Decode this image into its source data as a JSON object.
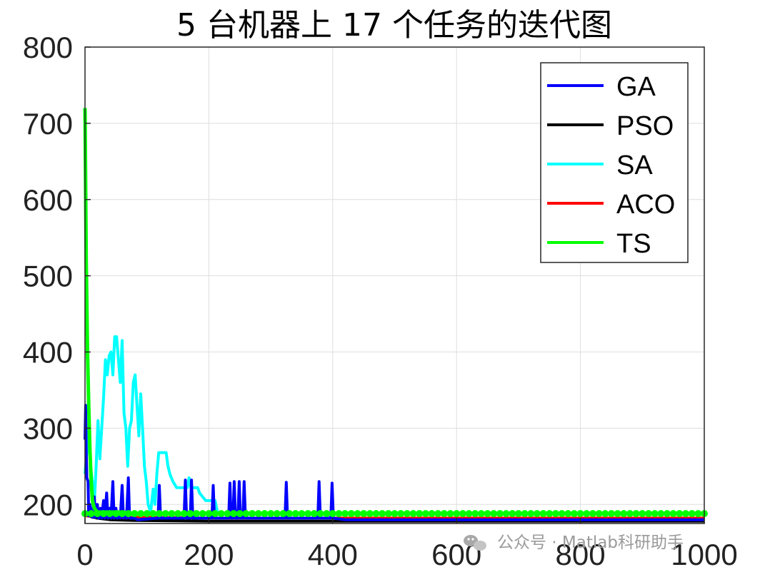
{
  "chart_data": {
    "type": "line",
    "title": "5 台机器上 17 个任务的迭代图",
    "xlabel": "",
    "ylabel": "",
    "xlim": [
      0,
      1000
    ],
    "ylim": [
      175,
      800
    ],
    "xticks": [
      0,
      200,
      400,
      600,
      800,
      1000
    ],
    "yticks": [
      200,
      300,
      400,
      500,
      600,
      700,
      800
    ],
    "grid": true,
    "legend_position": "top-right",
    "series": [
      {
        "name": "GA",
        "color": "#0000ff",
        "points": [
          [
            0,
            285
          ],
          [
            1,
            330
          ],
          [
            2,
            270
          ],
          [
            3,
            235
          ],
          [
            5,
            230
          ],
          [
            6,
            185
          ],
          [
            8,
            200
          ],
          [
            10,
            188
          ],
          [
            12,
            183
          ],
          [
            15,
            210
          ],
          [
            17,
            183
          ],
          [
            20,
            200
          ],
          [
            22,
            182
          ],
          [
            25,
            195
          ],
          [
            27,
            182
          ],
          [
            30,
            205
          ],
          [
            32,
            182
          ],
          [
            35,
            215
          ],
          [
            37,
            182
          ],
          [
            40,
            195
          ],
          [
            42,
            182
          ],
          [
            45,
            230
          ],
          [
            47,
            182
          ],
          [
            50,
            195
          ],
          [
            52,
            182
          ],
          [
            55,
            185
          ],
          [
            57,
            182
          ],
          [
            60,
            225
          ],
          [
            62,
            182
          ],
          [
            65,
            190
          ],
          [
            67,
            182
          ],
          [
            70,
            235
          ],
          [
            72,
            182
          ],
          [
            80,
            182
          ],
          [
            85,
            180
          ],
          [
            100,
            181
          ],
          [
            118,
            182
          ],
          [
            120,
            225
          ],
          [
            122,
            182
          ],
          [
            160,
            182
          ],
          [
            162,
            232
          ],
          [
            164,
            182
          ],
          [
            170,
            182
          ],
          [
            172,
            232
          ],
          [
            174,
            182
          ],
          [
            205,
            182
          ],
          [
            207,
            225
          ],
          [
            209,
            182
          ],
          [
            232,
            182
          ],
          [
            234,
            228
          ],
          [
            236,
            182
          ],
          [
            239,
            182
          ],
          [
            241,
            230
          ],
          [
            243,
            182
          ],
          [
            247,
            182
          ],
          [
            249,
            230
          ],
          [
            251,
            182
          ],
          [
            255,
            182
          ],
          [
            257,
            230
          ],
          [
            259,
            182
          ],
          [
            323,
            182
          ],
          [
            325,
            229
          ],
          [
            327,
            182
          ],
          [
            376,
            182
          ],
          [
            378,
            230
          ],
          [
            380,
            182
          ],
          [
            397,
            182
          ],
          [
            399,
            228
          ],
          [
            401,
            182
          ],
          [
            420,
            180
          ],
          [
            1000,
            180
          ]
        ]
      },
      {
        "name": "PSO",
        "color": "#000000",
        "points": [
          [
            0,
            190
          ],
          [
            5,
            188
          ],
          [
            10,
            184
          ],
          [
            20,
            182
          ],
          [
            40,
            180
          ],
          [
            80,
            179
          ],
          [
            200,
            178
          ],
          [
            1000,
            178
          ]
        ]
      },
      {
        "name": "SA",
        "color": "#00ffff",
        "points": [
          [
            0,
            240
          ],
          [
            3,
            270
          ],
          [
            6,
            300
          ],
          [
            9,
            250
          ],
          [
            12,
            230
          ],
          [
            15,
            200
          ],
          [
            18,
            250
          ],
          [
            21,
            310
          ],
          [
            24,
            260
          ],
          [
            27,
            300
          ],
          [
            30,
            340
          ],
          [
            33,
            390
          ],
          [
            36,
            370
          ],
          [
            39,
            395
          ],
          [
            42,
            400
          ],
          [
            45,
            370
          ],
          [
            48,
            420
          ],
          [
            51,
            420
          ],
          [
            54,
            390
          ],
          [
            57,
            360
          ],
          [
            60,
            415
          ],
          [
            63,
            320
          ],
          [
            66,
            300
          ],
          [
            69,
            250
          ],
          [
            72,
            300
          ],
          [
            75,
            310
          ],
          [
            78,
            360
          ],
          [
            81,
            370
          ],
          [
            84,
            330
          ],
          [
            87,
            290
          ],
          [
            90,
            345
          ],
          [
            93,
            300
          ],
          [
            96,
            250
          ],
          [
            99,
            230
          ],
          [
            102,
            200
          ],
          [
            106,
            190
          ],
          [
            110,
            220
          ],
          [
            113,
            200
          ],
          [
            116,
            240
          ],
          [
            119,
            268
          ],
          [
            125,
            268
          ],
          [
            131,
            268
          ],
          [
            134,
            250
          ],
          [
            137,
            240
          ],
          [
            142,
            230
          ],
          [
            148,
            222
          ],
          [
            165,
            222
          ],
          [
            168,
            235
          ],
          [
            171,
            222
          ],
          [
            182,
            222
          ],
          [
            185,
            215
          ],
          [
            190,
            210
          ],
          [
            195,
            205
          ],
          [
            210,
            205
          ],
          [
            214,
            190
          ],
          [
            230,
            188
          ],
          [
            1000,
            188
          ]
        ]
      },
      {
        "name": "ACO",
        "color": "#ff0000",
        "points": [
          [
            0,
            185
          ],
          [
            20,
            184
          ],
          [
            50,
            183
          ],
          [
            100,
            183
          ],
          [
            200,
            182
          ],
          [
            1000,
            182
          ]
        ]
      },
      {
        "name": "TS",
        "color": "#00ff00",
        "points": [
          [
            0,
            720
          ],
          [
            2,
            520
          ],
          [
            4,
            400
          ],
          [
            6,
            330
          ],
          [
            8,
            270
          ],
          [
            10,
            230
          ],
          [
            12,
            205
          ],
          [
            15,
            195
          ],
          [
            20,
            190
          ],
          [
            40,
            190
          ],
          [
            60,
            190
          ],
          [
            80,
            188
          ],
          [
            1000,
            188
          ]
        ]
      }
    ]
  },
  "watermark": {
    "icon": "wechat-icon",
    "text": "公众号 · Matlab科研助手"
  }
}
